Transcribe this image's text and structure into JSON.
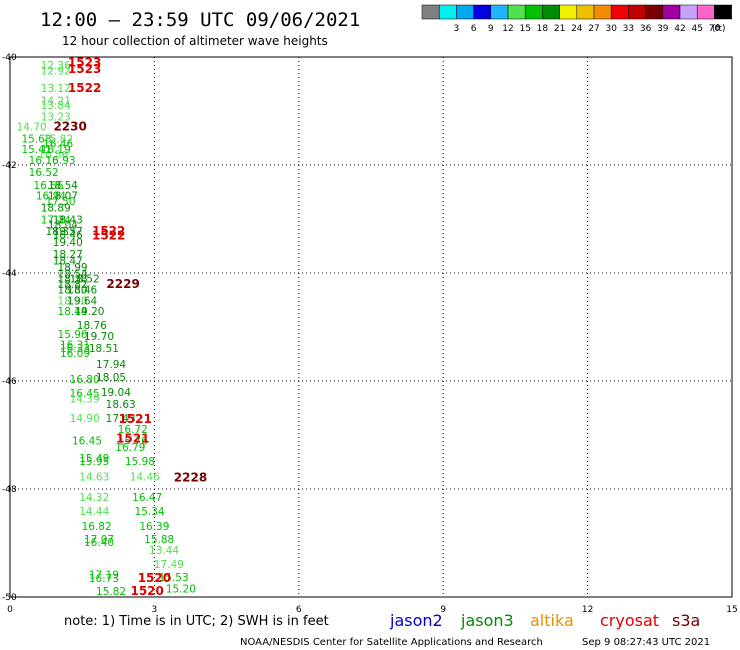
{
  "header": {
    "title": "12:00 – 23:59 UTC 09/06/2021",
    "subtitle": "12 hour collection of altimeter wave heights"
  },
  "scale": {
    "unit": "(ft)",
    "bins": [
      {
        "label": "",
        "color": "#7f7f7f"
      },
      {
        "label": "3",
        "color": "#00f0f0"
      },
      {
        "label": "6",
        "color": "#00a8f0"
      },
      {
        "label": "9",
        "color": "#0000e0"
      },
      {
        "label": "12",
        "color": "#1eb4ff"
      },
      {
        "label": "15",
        "color": "#50e050"
      },
      {
        "label": "18",
        "color": "#00c000"
      },
      {
        "label": "21",
        "color": "#008c00"
      },
      {
        "label": "24",
        "color": "#f0f000"
      },
      {
        "label": "27",
        "color": "#f0c000"
      },
      {
        "label": "30",
        "color": "#f08c00"
      },
      {
        "label": "33",
        "color": "#f00000"
      },
      {
        "label": "36",
        "color": "#c00000"
      },
      {
        "label": "39",
        "color": "#780000"
      },
      {
        "label": "42",
        "color": "#a000a0"
      },
      {
        "label": "45",
        "color": "#c8a0ff"
      },
      {
        "label": "70",
        "color": "#ff64c8"
      },
      {
        "label": "",
        "color": "#000000"
      }
    ]
  },
  "note": "note: 1) Time is in UTC; 2) SWH is in feet",
  "legend": [
    {
      "name": "jason2",
      "color": "#0000c8"
    },
    {
      "name": "jason3",
      "color": "#008c00"
    },
    {
      "name": "altika",
      "color": "#f08c00"
    },
    {
      "name": "cryosat",
      "color": "#e00000"
    },
    {
      "name": "s3a",
      "color": "#780000"
    }
  ],
  "footer": {
    "credit": "NOAA/NESDIS Center for Satellite Applications and Research",
    "timestamp": "Sep  9 08:27:43 UTC 2021"
  },
  "chart_data": {
    "type": "scatter",
    "xlim": [
      0,
      15
    ],
    "ylim": [
      -50,
      -40
    ],
    "x_ticks": [
      "0",
      "3",
      "6",
      "9",
      "12",
      "15"
    ],
    "y_ticks": [
      "-40",
      "-42",
      "-44",
      "-46",
      "-48",
      "-50"
    ],
    "grid": true,
    "colors": {
      "light": "#50e050",
      "mid": "#00c000",
      "dark": "#008c00"
    },
    "points": [
      {
        "x": 0.95,
        "y": -40.22,
        "v": "12.36",
        "c": "light"
      },
      {
        "x": 0.95,
        "y": -40.32,
        "v": "12.92",
        "c": "light"
      },
      {
        "x": 0.95,
        "y": -40.65,
        "v": "13.12",
        "c": "light"
      },
      {
        "x": 0.95,
        "y": -40.88,
        "v": "14.21",
        "c": "light"
      },
      {
        "x": 0.95,
        "y": -40.96,
        "v": "13.84",
        "c": "light"
      },
      {
        "x": 0.95,
        "y": -41.18,
        "v": "13.23",
        "c": "light"
      },
      {
        "x": 0.45,
        "y": -41.36,
        "v": "14.70",
        "c": "light"
      },
      {
        "x": 0.55,
        "y": -41.58,
        "v": "15.68",
        "c": "mid"
      },
      {
        "x": 1.0,
        "y": -41.58,
        "v": "15.82",
        "c": "light"
      },
      {
        "x": 1.0,
        "y": -41.68,
        "v": "16.46",
        "c": "mid"
      },
      {
        "x": 0.55,
        "y": -41.78,
        "v": "15.41",
        "c": "mid"
      },
      {
        "x": 0.95,
        "y": -41.78,
        "v": "16.19",
        "c": "mid"
      },
      {
        "x": 0.9,
        "y": -41.88,
        "v": "16.56",
        "c": "light"
      },
      {
        "x": 0.7,
        "y": -41.98,
        "v": "16.16",
        "c": "mid"
      },
      {
        "x": 1.05,
        "y": -41.98,
        "v": "16.93",
        "c": "mid"
      },
      {
        "x": 0.7,
        "y": -42.2,
        "v": "16.52",
        "c": "mid"
      },
      {
        "x": 0.8,
        "y": -42.44,
        "v": "16.66",
        "c": "mid"
      },
      {
        "x": 1.1,
        "y": -42.44,
        "v": "18.54",
        "c": "dark"
      },
      {
        "x": 0.85,
        "y": -42.64,
        "v": "16.94",
        "c": "mid"
      },
      {
        "x": 1.1,
        "y": -42.64,
        "v": "18.07",
        "c": "dark"
      },
      {
        "x": 1.05,
        "y": -42.74,
        "v": "17.50",
        "c": "mid"
      },
      {
        "x": 0.95,
        "y": -42.86,
        "v": "18.89",
        "c": "dark"
      },
      {
        "x": 0.95,
        "y": -43.08,
        "v": "17.34",
        "c": "mid"
      },
      {
        "x": 1.2,
        "y": -43.08,
        "v": "18.43",
        "c": "dark"
      },
      {
        "x": 1.1,
        "y": -43.18,
        "v": "18.04",
        "c": "dark"
      },
      {
        "x": 1.05,
        "y": -43.3,
        "v": "18.33",
        "c": "dark"
      },
      {
        "x": 1.2,
        "y": -43.3,
        "v": "19.57",
        "c": "dark"
      },
      {
        "x": 1.2,
        "y": -43.36,
        "v": "18.46",
        "c": "dark"
      },
      {
        "x": 1.2,
        "y": -43.5,
        "v": "19.40",
        "c": "dark"
      },
      {
        "x": 1.2,
        "y": -43.72,
        "v": "18.27",
        "c": "dark"
      },
      {
        "x": 1.2,
        "y": -43.84,
        "v": "18.47",
        "c": "dark"
      },
      {
        "x": 1.3,
        "y": -43.96,
        "v": "18.99",
        "c": "dark"
      },
      {
        "x": 1.3,
        "y": -44.08,
        "v": "18.54",
        "c": "dark"
      },
      {
        "x": 1.3,
        "y": -44.18,
        "v": "18.38",
        "c": "dark"
      },
      {
        "x": 1.55,
        "y": -44.18,
        "v": "18.52",
        "c": "dark"
      },
      {
        "x": 1.3,
        "y": -44.28,
        "v": "18.82",
        "c": "dark"
      },
      {
        "x": 1.3,
        "y": -44.38,
        "v": "18.80",
        "c": "dark"
      },
      {
        "x": 1.5,
        "y": -44.38,
        "v": "18.46",
        "c": "dark"
      },
      {
        "x": 1.3,
        "y": -44.58,
        "v": "18.30",
        "c": "light"
      },
      {
        "x": 1.5,
        "y": -44.58,
        "v": "19.64",
        "c": "dark"
      },
      {
        "x": 1.3,
        "y": -44.78,
        "v": "18.44",
        "c": "mid"
      },
      {
        "x": 1.65,
        "y": -44.78,
        "v": "19.20",
        "c": "dark"
      },
      {
        "x": 1.7,
        "y": -45.04,
        "v": "18.76",
        "c": "dark"
      },
      {
        "x": 1.3,
        "y": -45.2,
        "v": "15.96",
        "c": "mid"
      },
      {
        "x": 1.85,
        "y": -45.24,
        "v": "19.70",
        "c": "dark"
      },
      {
        "x": 1.35,
        "y": -45.4,
        "v": "16.31",
        "c": "mid"
      },
      {
        "x": 1.35,
        "y": -45.46,
        "v": "16.33",
        "c": "mid"
      },
      {
        "x": 1.95,
        "y": -45.46,
        "v": "18.51",
        "c": "dark"
      },
      {
        "x": 1.35,
        "y": -45.56,
        "v": "16.09",
        "c": "mid"
      },
      {
        "x": 2.1,
        "y": -45.76,
        "v": "17.94",
        "c": "dark"
      },
      {
        "x": 1.55,
        "y": -46.04,
        "v": "16.80",
        "c": "mid"
      },
      {
        "x": 2.1,
        "y": -46.0,
        "v": "18.05",
        "c": "dark"
      },
      {
        "x": 1.55,
        "y": -46.3,
        "v": "16.45",
        "c": "mid"
      },
      {
        "x": 2.2,
        "y": -46.28,
        "v": "19.04",
        "c": "dark"
      },
      {
        "x": 1.55,
        "y": -46.4,
        "v": "14.39",
        "c": "light"
      },
      {
        "x": 2.3,
        "y": -46.5,
        "v": "18.63",
        "c": "dark"
      },
      {
        "x": 1.55,
        "y": -46.76,
        "v": "14.90",
        "c": "light"
      },
      {
        "x": 2.3,
        "y": -46.76,
        "v": "17.43",
        "c": "dark"
      },
      {
        "x": 2.55,
        "y": -46.96,
        "v": "16.72",
        "c": "mid"
      },
      {
        "x": 1.6,
        "y": -47.18,
        "v": "16.45",
        "c": "mid"
      },
      {
        "x": 2.55,
        "y": -47.18,
        "v": "15.76",
        "c": "mid"
      },
      {
        "x": 2.5,
        "y": -47.3,
        "v": "16.79",
        "c": "mid"
      },
      {
        "x": 1.75,
        "y": -47.5,
        "v": "15.49",
        "c": "mid"
      },
      {
        "x": 1.75,
        "y": -47.56,
        "v": "15.95",
        "c": "mid"
      },
      {
        "x": 2.7,
        "y": -47.56,
        "v": "15.98",
        "c": "mid"
      },
      {
        "x": 1.75,
        "y": -47.84,
        "v": "14.63",
        "c": "light"
      },
      {
        "x": 2.8,
        "y": -47.84,
        "v": "14.46",
        "c": "light"
      },
      {
        "x": 1.75,
        "y": -48.22,
        "v": "14.32",
        "c": "light"
      },
      {
        "x": 2.85,
        "y": -48.22,
        "v": "16.47",
        "c": "mid"
      },
      {
        "x": 1.75,
        "y": -48.48,
        "v": "14.44",
        "c": "light"
      },
      {
        "x": 2.9,
        "y": -48.48,
        "v": "15.34",
        "c": "mid"
      },
      {
        "x": 1.8,
        "y": -48.76,
        "v": "16.82",
        "c": "mid"
      },
      {
        "x": 3.0,
        "y": -48.76,
        "v": "16.39",
        "c": "mid"
      },
      {
        "x": 1.85,
        "y": -49.0,
        "v": "17.07",
        "c": "mid"
      },
      {
        "x": 1.85,
        "y": -49.06,
        "v": "16.40",
        "c": "mid"
      },
      {
        "x": 3.1,
        "y": -49.0,
        "v": "15.88",
        "c": "mid"
      },
      {
        "x": 3.2,
        "y": -49.2,
        "v": "13.44",
        "c": "light"
      },
      {
        "x": 3.3,
        "y": -49.46,
        "v": "17.49",
        "c": "light"
      },
      {
        "x": 1.95,
        "y": -49.66,
        "v": "17.19",
        "c": "mid"
      },
      {
        "x": 1.95,
        "y": -49.72,
        "v": "16.73",
        "c": "mid"
      },
      {
        "x": 3.4,
        "y": -49.7,
        "v": "15.53",
        "c": "mid"
      },
      {
        "x": 2.1,
        "y": -49.96,
        "v": "15.82",
        "c": "mid"
      },
      {
        "x": 3.55,
        "y": -49.92,
        "v": "15.20",
        "c": "mid"
      }
    ],
    "pass_labels": [
      {
        "x": 1.55,
        "y": -40.18,
        "text": "1523",
        "color": "#e00000"
      },
      {
        "x": 1.55,
        "y": -40.3,
        "text": "1523",
        "color": "#e00000"
      },
      {
        "x": 1.55,
        "y": -40.65,
        "text": "1522",
        "color": "#e00000"
      },
      {
        "x": 1.25,
        "y": -41.36,
        "text": "2230",
        "color": "#780000"
      },
      {
        "x": 2.05,
        "y": -43.3,
        "text": "1522",
        "color": "#e00000"
      },
      {
        "x": 2.05,
        "y": -43.38,
        "text": "1522",
        "color": "#e00000"
      },
      {
        "x": 2.35,
        "y": -44.28,
        "text": "2229",
        "color": "#780000"
      },
      {
        "x": 2.6,
        "y": -46.78,
        "text": "1521",
        "color": "#e00000"
      },
      {
        "x": 2.55,
        "y": -47.14,
        "text": "1521",
        "color": "#e00000"
      },
      {
        "x": 3.75,
        "y": -47.86,
        "text": "2228",
        "color": "#780000"
      },
      {
        "x": 3.0,
        "y": -49.72,
        "text": "1520",
        "color": "#e00000"
      },
      {
        "x": 2.85,
        "y": -49.96,
        "text": "1520",
        "color": "#e00000"
      }
    ]
  }
}
